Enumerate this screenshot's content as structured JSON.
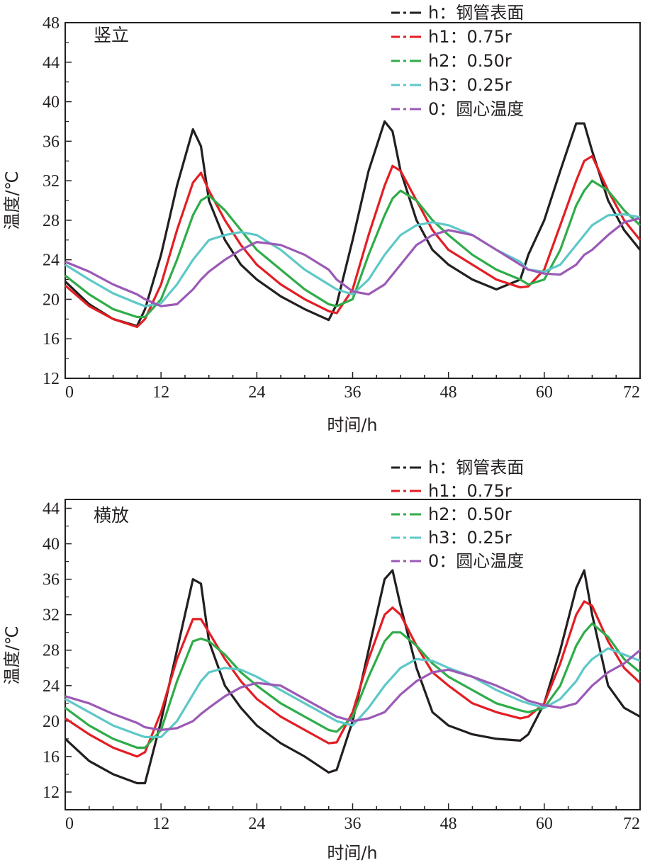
{
  "chart_data": [
    {
      "type": "line",
      "panel_title": "竖立",
      "xlabel": "时间/h",
      "ylabel": "温度/℃",
      "xlim": [
        0,
        72
      ],
      "ylim": [
        12,
        48
      ],
      "xticks": [
        0,
        12,
        24,
        36,
        48,
        60,
        72
      ],
      "yticks": [
        12,
        16,
        20,
        24,
        28,
        32,
        36,
        40,
        44,
        48
      ],
      "grid": false,
      "legend_position": "top-right",
      "x": [
        0,
        3,
        6,
        9,
        10,
        12,
        14,
        16,
        17,
        18,
        20,
        22,
        24,
        27,
        30,
        33,
        34,
        36,
        38,
        40,
        41,
        42,
        44,
        46,
        48,
        51,
        54,
        57,
        58,
        60,
        62,
        64,
        65,
        66,
        68,
        70,
        72
      ],
      "series": [
        {
          "name": "h：钢管表面",
          "color": "#231f20",
          "values": [
            21.8,
            19.5,
            18.0,
            17.3,
            19.0,
            24.5,
            31.5,
            37.2,
            35.5,
            30.0,
            26.0,
            23.5,
            22.0,
            20.3,
            19.0,
            17.9,
            19.5,
            26.0,
            33.0,
            38.0,
            37.0,
            33.0,
            28.0,
            25.0,
            23.5,
            22.0,
            21.0,
            22.0,
            24.5,
            28.0,
            33.0,
            37.8,
            37.8,
            35.0,
            30.0,
            27.0,
            25.0
          ]
        },
        {
          "name": "h1：0.75r",
          "color": "#e31e24",
          "values": [
            21.4,
            19.3,
            18.0,
            17.2,
            18.0,
            21.5,
            27.0,
            31.8,
            32.8,
            31.0,
            28.0,
            25.5,
            23.5,
            21.5,
            20.0,
            18.8,
            18.6,
            21.0,
            26.5,
            31.5,
            33.5,
            33.0,
            30.0,
            27.0,
            25.0,
            23.5,
            22.0,
            21.2,
            21.3,
            23.0,
            27.5,
            32.0,
            34.0,
            34.5,
            31.0,
            28.0,
            26.0
          ]
        },
        {
          "name": "h2：0.50r",
          "color": "#2fac49",
          "values": [
            22.4,
            20.5,
            19.0,
            18.2,
            18.2,
            20.0,
            24.0,
            28.5,
            30.0,
            30.5,
            29.0,
            27.0,
            25.0,
            23.0,
            21.0,
            19.5,
            19.3,
            20.0,
            24.5,
            28.5,
            30.2,
            31.0,
            30.0,
            28.0,
            26.5,
            24.5,
            23.0,
            22.0,
            21.5,
            22.0,
            25.0,
            29.5,
            31.0,
            32.0,
            31.0,
            29.0,
            27.5
          ]
        },
        {
          "name": "h3：0.25r",
          "color": "#5ec8c8",
          "values": [
            23.5,
            22.0,
            20.6,
            19.6,
            19.3,
            19.6,
            21.5,
            24.0,
            25.0,
            26.0,
            26.5,
            26.8,
            26.5,
            25.0,
            23.0,
            21.5,
            21.0,
            20.5,
            22.0,
            24.5,
            25.5,
            26.5,
            27.5,
            27.8,
            27.5,
            26.5,
            25.0,
            23.8,
            23.0,
            22.8,
            23.5,
            25.5,
            26.5,
            27.5,
            28.5,
            28.6,
            28.3
          ]
        },
        {
          "name": "0：圆心温度",
          "color": "#9b59b6",
          "values": [
            23.8,
            22.8,
            21.5,
            20.5,
            20.0,
            19.3,
            19.5,
            21.0,
            22.0,
            22.8,
            24.0,
            25.0,
            25.8,
            25.5,
            24.5,
            23.0,
            22.0,
            20.8,
            20.5,
            21.5,
            22.5,
            23.5,
            25.5,
            26.5,
            27.0,
            26.5,
            25.0,
            23.5,
            23.0,
            22.6,
            22.5,
            23.5,
            24.5,
            25.0,
            26.5,
            27.8,
            28.2
          ]
        }
      ]
    },
    {
      "type": "line",
      "panel_title": "横放",
      "xlabel": "时间/h",
      "ylabel": "温度/℃",
      "xlim": [
        0,
        72
      ],
      "ylim": [
        10,
        45
      ],
      "xticks": [
        0,
        12,
        24,
        36,
        48,
        60,
        72
      ],
      "yticks": [
        12,
        16,
        20,
        24,
        28,
        32,
        36,
        40,
        44
      ],
      "grid": false,
      "legend_position": "top-right",
      "x": [
        0,
        3,
        6,
        9,
        10,
        12,
        14,
        16,
        17,
        18,
        20,
        22,
        24,
        27,
        30,
        33,
        34,
        36,
        38,
        40,
        41,
        42,
        44,
        46,
        48,
        51,
        54,
        57,
        58,
        60,
        62,
        64,
        65,
        66,
        68,
        70,
        72
      ],
      "series": [
        {
          "name": "h：钢管表面",
          "color": "#231f20",
          "values": [
            18.0,
            15.5,
            14.0,
            13.0,
            13.0,
            20.0,
            28.0,
            36.0,
            35.5,
            29.0,
            24.0,
            21.5,
            19.5,
            17.5,
            16.0,
            14.2,
            14.5,
            20.0,
            28.0,
            36.0,
            37.0,
            33.0,
            26.0,
            21.0,
            19.5,
            18.5,
            18.0,
            17.8,
            18.5,
            22.0,
            28.0,
            35.0,
            37.0,
            32.0,
            24.0,
            21.5,
            20.5
          ]
        },
        {
          "name": "h1：0.75r",
          "color": "#e31e24",
          "values": [
            20.3,
            18.5,
            17.0,
            16.0,
            16.5,
            21.0,
            27.0,
            31.5,
            31.5,
            30.0,
            27.0,
            24.5,
            22.5,
            20.5,
            19.0,
            17.5,
            17.6,
            21.0,
            27.0,
            32.0,
            32.8,
            32.0,
            28.5,
            25.5,
            24.0,
            22.0,
            21.0,
            20.3,
            20.5,
            22.0,
            26.5,
            32.0,
            33.5,
            33.0,
            29.0,
            26.0,
            24.3
          ]
        },
        {
          "name": "h2：0.50r",
          "color": "#2fac49",
          "values": [
            21.5,
            19.5,
            18.0,
            17.0,
            17.0,
            19.0,
            24.5,
            29.0,
            29.3,
            29.0,
            27.5,
            25.5,
            24.0,
            22.0,
            20.5,
            19.0,
            18.8,
            20.5,
            25.0,
            29.0,
            30.0,
            30.0,
            28.5,
            26.5,
            25.0,
            23.5,
            22.0,
            21.2,
            21.0,
            21.5,
            24.0,
            28.5,
            30.0,
            31.0,
            29.5,
            27.0,
            25.5
          ]
        },
        {
          "name": "h3：0.25r",
          "color": "#5ec8c8",
          "values": [
            22.5,
            21.0,
            19.5,
            18.5,
            18.2,
            18.2,
            20.0,
            23.0,
            24.5,
            25.5,
            26.0,
            25.8,
            25.0,
            23.5,
            22.0,
            20.5,
            20.0,
            19.5,
            21.5,
            24.0,
            25.0,
            26.0,
            27.0,
            26.8,
            26.0,
            25.0,
            23.5,
            22.3,
            22.0,
            21.5,
            22.5,
            24.5,
            26.0,
            27.0,
            28.2,
            27.5,
            26.8
          ]
        },
        {
          "name": "0：圆心温度",
          "color": "#9b59b6",
          "values": [
            22.8,
            22.0,
            20.8,
            19.8,
            19.3,
            19.0,
            19.2,
            20.0,
            20.8,
            21.5,
            22.8,
            23.8,
            24.3,
            24.0,
            22.5,
            21.0,
            20.5,
            20.0,
            20.3,
            21.0,
            22.0,
            23.0,
            24.5,
            25.5,
            25.8,
            25.0,
            24.0,
            22.8,
            22.3,
            21.8,
            21.5,
            22.0,
            23.0,
            24.0,
            25.5,
            26.5,
            28.0
          ]
        }
      ]
    }
  ]
}
